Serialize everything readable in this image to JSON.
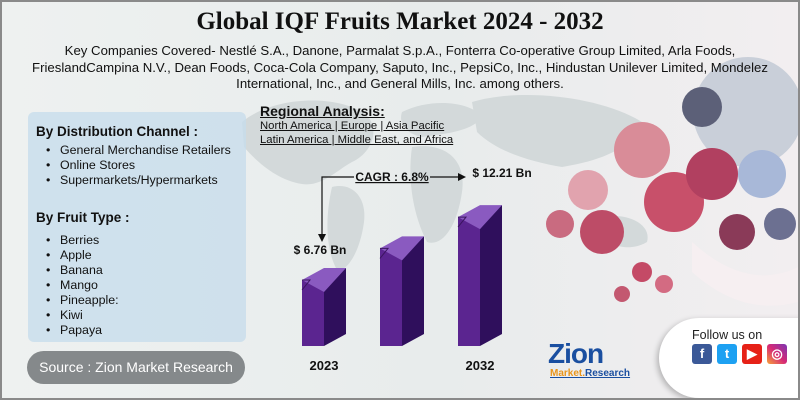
{
  "title": "Global IQF Fruits Market 2024 - 2032",
  "companies": "Key Companies Covered- Nestlé S.A., Danone, Parmalat S.p.A., Fonterra Co-operative Group Limited, Arla Foods, FrieslandCampina N.V., Dean Foods, Coca-Cola Company, Saputo, Inc., PepsiCo, Inc., Hindustan Unilever Limited, Mondelez International, Inc., and General Mills, Inc. among others.",
  "distribution": {
    "heading": "By Distribution Channel :",
    "items": [
      "General Merchandise Retailers",
      "Online Stores",
      "Supermarkets/Hypermarkets"
    ]
  },
  "fruit_type": {
    "heading": "By Fruit Type :",
    "items": [
      "Berries",
      "Apple",
      "Banana",
      "Mango",
      "Pineapple:",
      "Kiwi",
      "Papaya"
    ]
  },
  "source": "Source : Zion Market Research",
  "regional": {
    "title": "Regional Analysis:",
    "line1": "North America | Europe | Asia Pacific",
    "line2": "Latin America | Middle East, and Africa"
  },
  "follow": {
    "label": "Follow us on",
    "icons": [
      "facebook-icon",
      "twitter-icon",
      "youtube-icon",
      "instagram-icon"
    ]
  },
  "logo": {
    "main": "Zion",
    "sub_a": "Market.",
    "sub_b": "Research"
  },
  "colors": {
    "bar_front": "#5b2590",
    "bar_side": "#2f0f5c",
    "bar_top": "#8a5ac0",
    "source_bg": "#85898b"
  },
  "chart_data": {
    "type": "bar",
    "categories": [
      "2023",
      "",
      "2032"
    ],
    "values": [
      6.76,
      9.5,
      12.21
    ],
    "value_labels": [
      "$ 6.76 Bn",
      "",
      "$ 12.21 Bn"
    ],
    "cagr_label": "CAGR : 6.8%",
    "ylim": [
      0,
      13
    ]
  }
}
